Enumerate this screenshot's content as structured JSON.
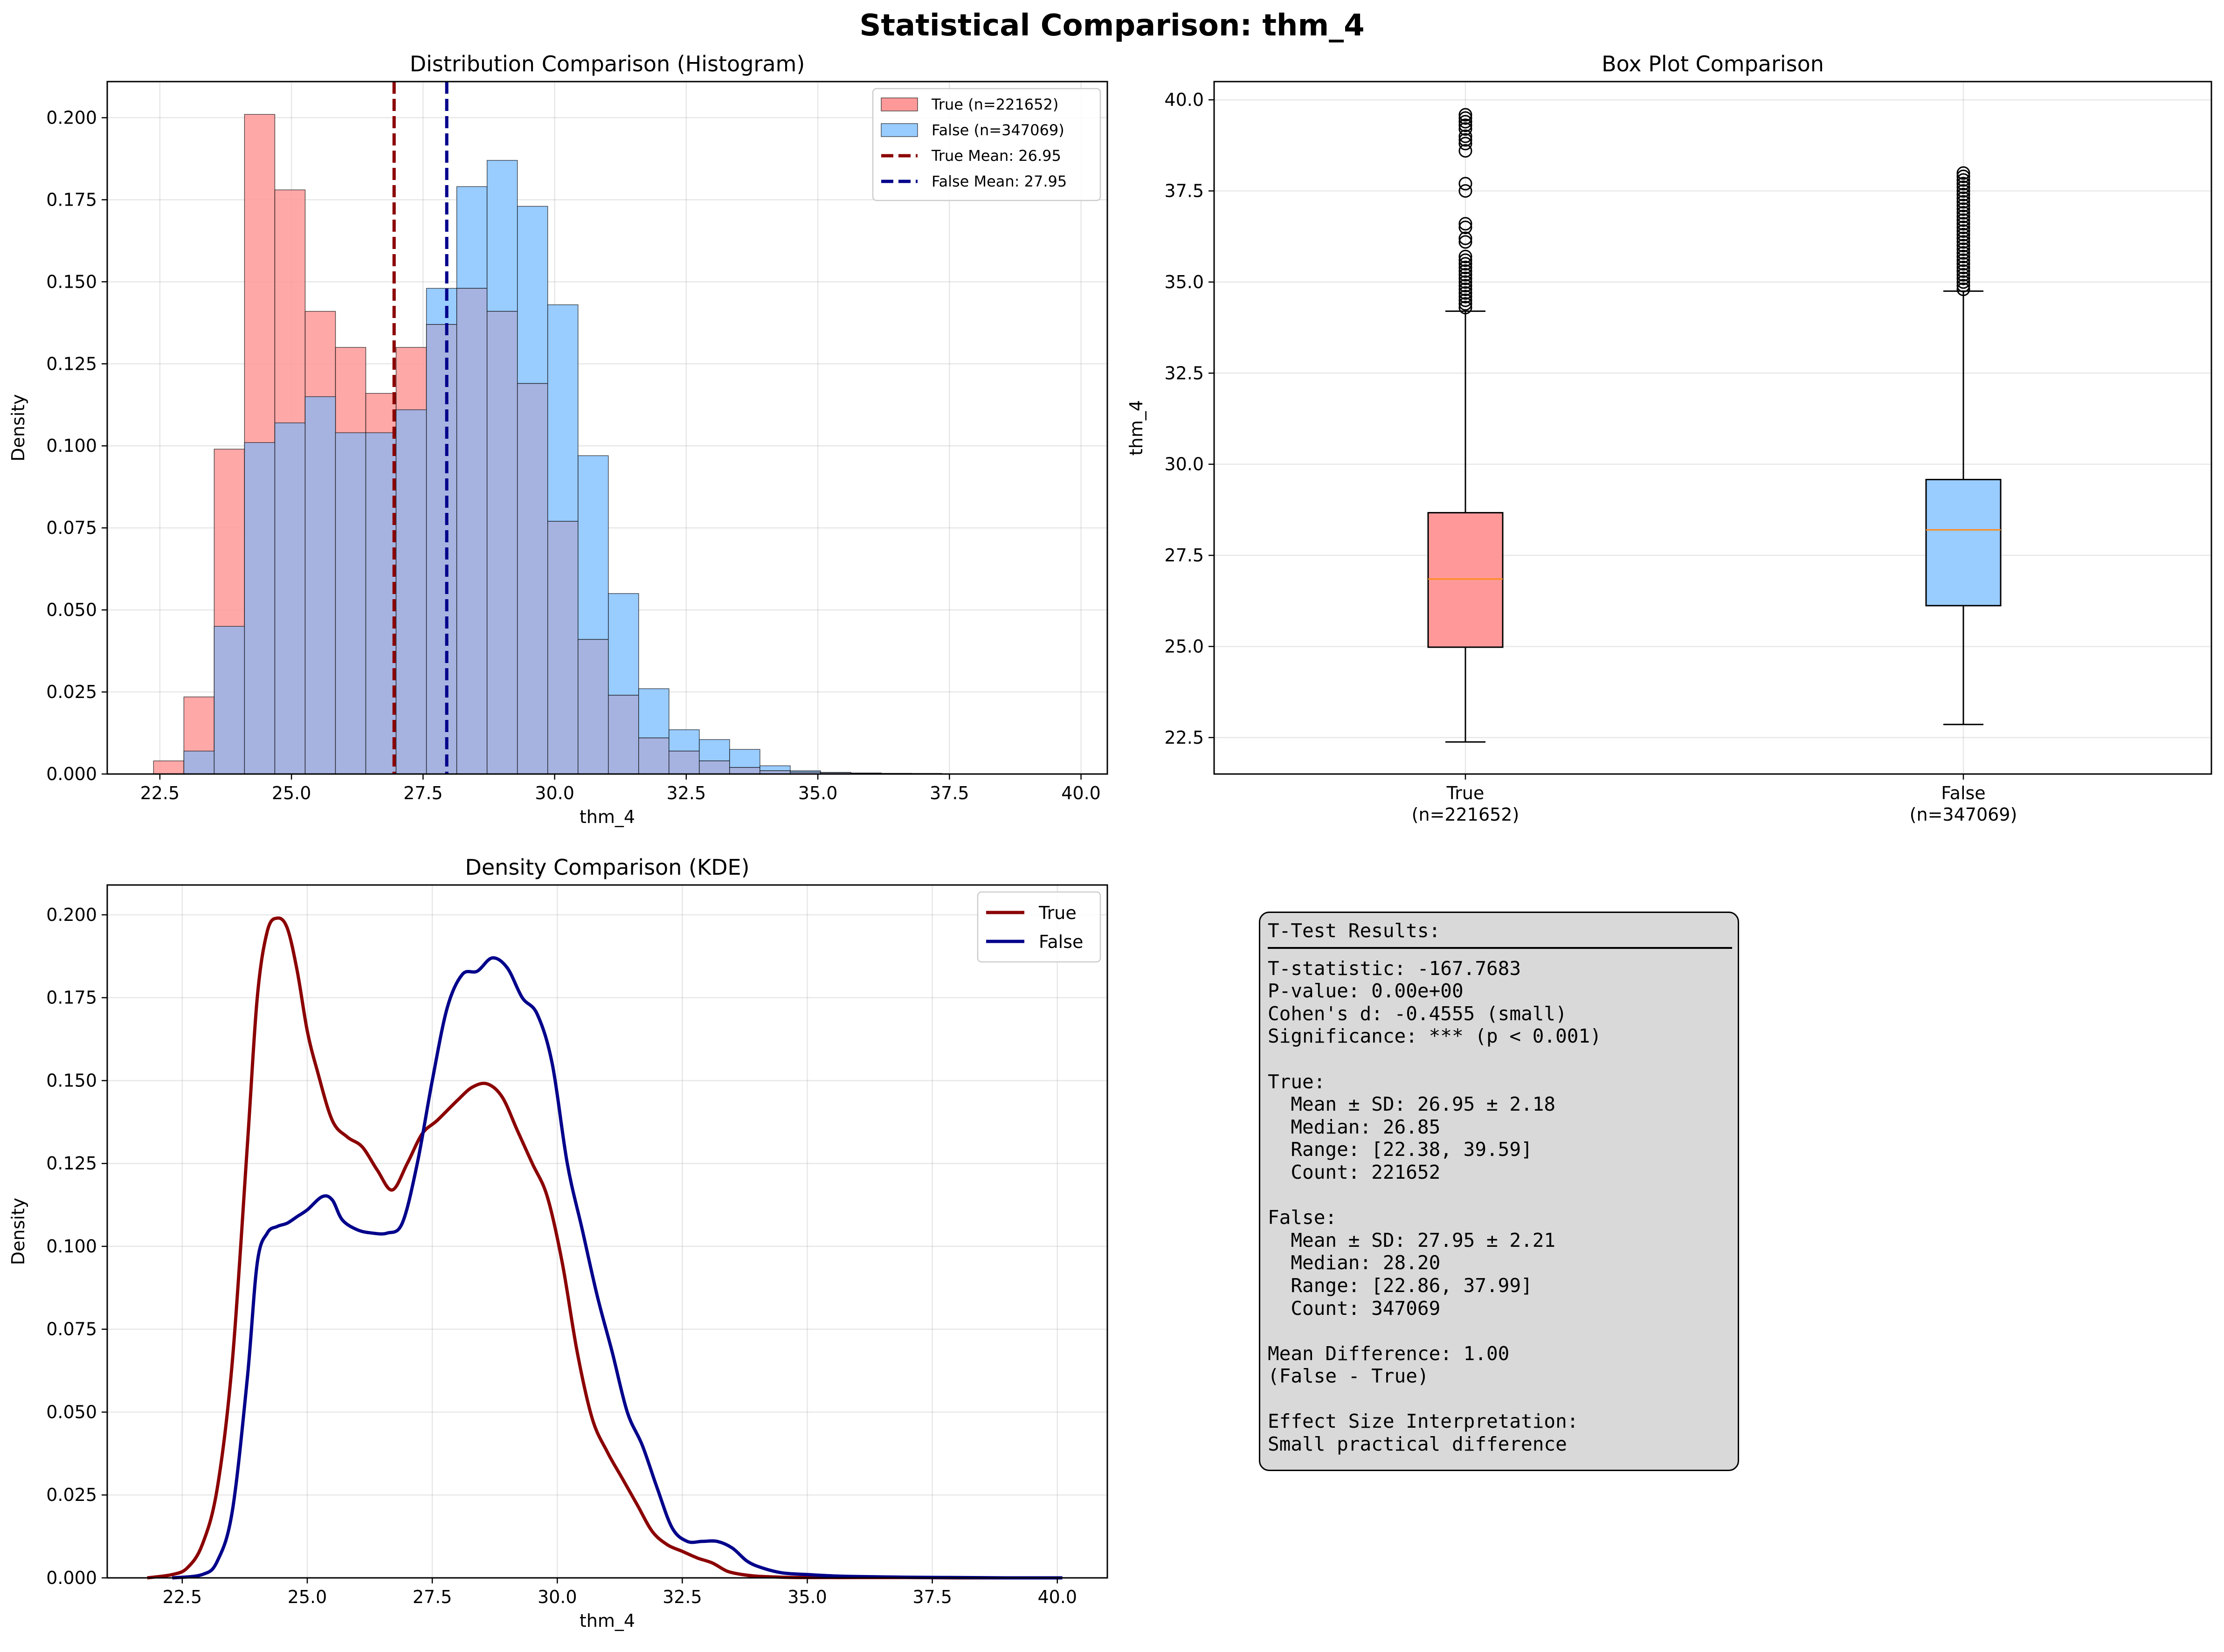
{
  "figure_title": "Statistical Comparison: thm_4",
  "colors": {
    "true_fill": "#ff9999",
    "false_fill": "#99ccff",
    "overlap_fill": "#a6b3e0",
    "true_line": "#8b0000",
    "false_line": "#00008b",
    "median": "#ff8c1a"
  },
  "chart_data": [
    {
      "type": "bar",
      "title": "Distribution Comparison (Histogram)",
      "xlabel": "thm_4",
      "ylabel": "Density",
      "xlim": [
        21.5,
        40.5
      ],
      "ylim": [
        0,
        0.211
      ],
      "xticks": [
        "22.5",
        "25.0",
        "27.5",
        "30.0",
        "32.5",
        "35.0",
        "37.5",
        "40.0"
      ],
      "yticks": [
        "0.000",
        "0.025",
        "0.050",
        "0.075",
        "0.100",
        "0.125",
        "0.150",
        "0.175",
        "0.200"
      ],
      "grid": true,
      "legend_position": "top-right",
      "series": [
        {
          "name": "True (n=221652)",
          "bin_start": 22.38,
          "bin_width": 0.576,
          "values": [
            0.004,
            0.0235,
            0.099,
            0.201,
            0.178,
            0.141,
            0.13,
            0.116,
            0.13,
            0.137,
            0.148,
            0.141,
            0.119,
            0.077,
            0.041,
            0.024,
            0.011,
            0.007,
            0.004,
            0.002,
            0.001,
            0.0006,
            0.0004,
            0.0003,
            0.0002,
            0.0001,
            0.0001,
            0.0001,
            0.0001,
            0.0001
          ]
        },
        {
          "name": "False (n=347069)",
          "bin_start": 22.38,
          "bin_width": 0.576,
          "values": [
            0.0,
            0.007,
            0.045,
            0.101,
            0.107,
            0.115,
            0.104,
            0.104,
            0.111,
            0.148,
            0.179,
            0.187,
            0.173,
            0.143,
            0.097,
            0.055,
            0.026,
            0.0135,
            0.0105,
            0.0075,
            0.0025,
            0.001,
            0.0005,
            0.0003,
            0.0002,
            0.0002,
            0.0001,
            0.0001,
            0.0,
            0.0
          ]
        }
      ],
      "mean_lines": [
        {
          "name": "True Mean: 26.95",
          "value": 26.95
        },
        {
          "name": "False Mean: 27.95",
          "value": 27.95
        }
      ]
    },
    {
      "type": "box",
      "title": "Box Plot Comparison",
      "ylabel": "thm_4",
      "ylim": [
        21.5,
        40.5
      ],
      "yticks": [
        "22.5",
        "25.0",
        "27.5",
        "30.0",
        "32.5",
        "35.0",
        "37.5",
        "40.0"
      ],
      "grid": true,
      "categories": [
        "True\n(n=221652)",
        "False\n(n=347069)"
      ],
      "boxes": [
        {
          "name": "True",
          "whisker_low": 22.38,
          "q1": 24.98,
          "median": 26.85,
          "q3": 28.67,
          "whisker_high": 34.2,
          "outliers": [
            34.3,
            34.4,
            34.5,
            34.6,
            34.7,
            34.8,
            34.9,
            35.0,
            35.1,
            35.2,
            35.3,
            35.4,
            35.5,
            35.6,
            35.7,
            36.1,
            36.2,
            36.5,
            36.6,
            37.5,
            37.7,
            38.6,
            38.8,
            38.9,
            39.0,
            39.2,
            39.3,
            39.4,
            39.5,
            39.59
          ]
        },
        {
          "name": "False",
          "whisker_low": 22.86,
          "q1": 26.12,
          "median": 28.2,
          "q3": 29.58,
          "whisker_high": 34.75,
          "outliers": [
            34.8,
            34.9,
            35.0,
            35.1,
            35.2,
            35.3,
            35.4,
            35.5,
            35.6,
            35.7,
            35.8,
            35.9,
            36.0,
            36.1,
            36.2,
            36.3,
            36.4,
            36.5,
            36.6,
            36.7,
            36.8,
            36.9,
            37.0,
            37.1,
            37.2,
            37.3,
            37.4,
            37.5,
            37.6,
            37.7,
            37.8,
            37.9,
            37.99
          ]
        }
      ]
    },
    {
      "type": "line",
      "title": "Density Comparison (KDE)",
      "xlabel": "thm_4",
      "ylabel": "Density",
      "xlim": [
        21.0,
        41.0
      ],
      "ylim": [
        0,
        0.209
      ],
      "xticks": [
        "22.5",
        "25.0",
        "27.5",
        "30.0",
        "32.5",
        "35.0",
        "37.5",
        "40.0"
      ],
      "yticks": [
        "0.000",
        "0.025",
        "0.050",
        "0.075",
        "0.100",
        "0.125",
        "0.150",
        "0.175",
        "0.200"
      ],
      "grid": true,
      "legend_position": "top-right",
      "series": [
        {
          "name": "True",
          "x": [
            21.8,
            22.3,
            22.6,
            22.9,
            23.2,
            23.5,
            23.8,
            24.0,
            24.2,
            24.4,
            24.6,
            24.8,
            25.0,
            25.2,
            25.5,
            25.8,
            26.1,
            26.4,
            26.7,
            27.0,
            27.3,
            27.6,
            28.0,
            28.3,
            28.6,
            28.9,
            29.2,
            29.5,
            29.8,
            30.1,
            30.4,
            30.7,
            31.0,
            31.3,
            31.6,
            31.9,
            32.2,
            32.5,
            32.8,
            33.1,
            33.4,
            33.7,
            34.0,
            34.5,
            35.0,
            36.0,
            37.0,
            38.0,
            39.0,
            40.1
          ],
          "y": [
            0.0,
            0.001,
            0.003,
            0.01,
            0.027,
            0.065,
            0.13,
            0.175,
            0.195,
            0.199,
            0.196,
            0.183,
            0.165,
            0.153,
            0.138,
            0.133,
            0.13,
            0.123,
            0.117,
            0.125,
            0.134,
            0.138,
            0.144,
            0.148,
            0.149,
            0.145,
            0.135,
            0.125,
            0.115,
            0.095,
            0.068,
            0.048,
            0.038,
            0.03,
            0.022,
            0.014,
            0.01,
            0.008,
            0.006,
            0.0045,
            0.002,
            0.001,
            0.0005,
            0.0002,
            0.0001,
            0.0001,
            0.0001,
            0.0,
            0.0,
            0.0
          ]
        },
        {
          "name": "False",
          "x": [
            22.3,
            22.9,
            23.2,
            23.5,
            23.8,
            24.0,
            24.2,
            24.4,
            24.6,
            24.8,
            25.0,
            25.3,
            25.5,
            25.7,
            26.0,
            26.3,
            26.6,
            26.9,
            27.2,
            27.5,
            27.8,
            28.1,
            28.4,
            28.7,
            29.0,
            29.3,
            29.6,
            29.9,
            30.2,
            30.5,
            30.8,
            31.1,
            31.4,
            31.7,
            32.0,
            32.3,
            32.6,
            32.9,
            33.2,
            33.5,
            33.8,
            34.1,
            34.5,
            35.0,
            35.5,
            36.0,
            37.0,
            38.0,
            39.0,
            40.1
          ],
          "y": [
            0.0,
            0.001,
            0.005,
            0.02,
            0.06,
            0.095,
            0.104,
            0.106,
            0.107,
            0.109,
            0.111,
            0.115,
            0.114,
            0.108,
            0.105,
            0.104,
            0.104,
            0.107,
            0.125,
            0.15,
            0.172,
            0.182,
            0.183,
            0.187,
            0.184,
            0.175,
            0.17,
            0.155,
            0.125,
            0.105,
            0.085,
            0.068,
            0.05,
            0.04,
            0.027,
            0.015,
            0.011,
            0.011,
            0.011,
            0.009,
            0.005,
            0.003,
            0.0015,
            0.001,
            0.0006,
            0.0004,
            0.0002,
            0.0001,
            0.0,
            0.0
          ]
        }
      ]
    }
  ],
  "stats_text": {
    "header": "T-Test Results:",
    "lines": [
      "T-statistic: -167.7683",
      "P-value: 0.00e+00",
      "Cohen's d: -0.4555 (small)",
      "Significance: *** (p < 0.001)",
      "",
      "True:",
      "  Mean ± SD: 26.95 ± 2.18",
      "  Median: 26.85",
      "  Range: [22.38, 39.59]",
      "  Count: 221652",
      "",
      "False:",
      "  Mean ± SD: 27.95 ± 2.21",
      "  Median: 28.20",
      "  Range: [22.86, 37.99]",
      "  Count: 347069",
      "",
      "Mean Difference: 1.00",
      "(False - True)",
      "",
      "Effect Size Interpretation:",
      "Small practical difference"
    ]
  }
}
